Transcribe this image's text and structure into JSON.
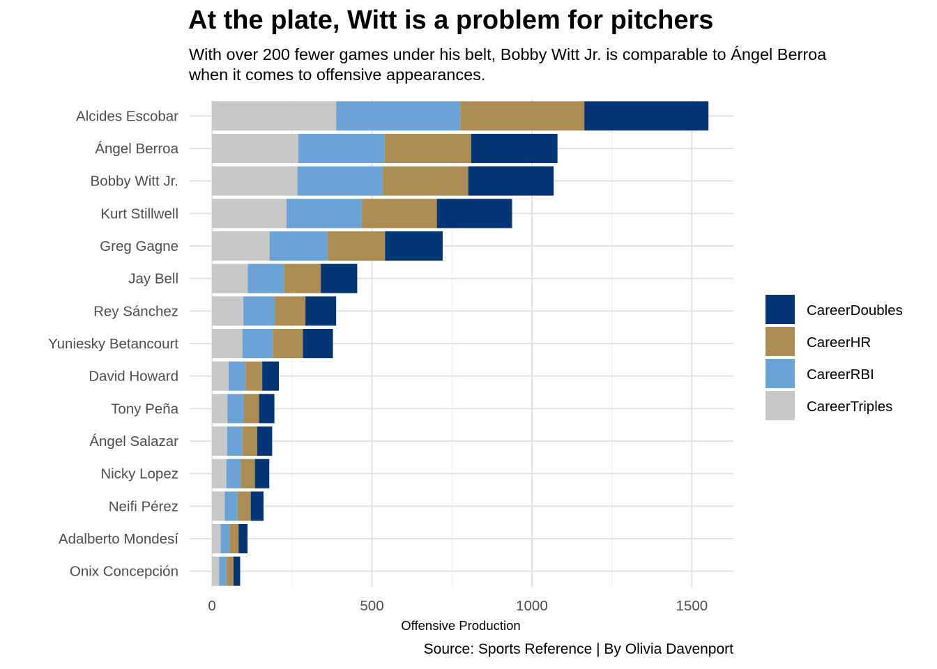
{
  "chart_data": {
    "type": "bar",
    "orientation": "horizontal",
    "stacked": true,
    "title": "At the plate, Witt is a problem for pitchers",
    "subtitle": "With over 200 fewer games under his belt, Bobby Witt Jr. is comparable to Ángel Berroa when it comes to offensive appearances.",
    "caption": "Source: Sports Reference | By Olivia Davenport",
    "xlabel": "Offensive Production",
    "ylabel": "",
    "xlim": [
      -70,
      1630
    ],
    "xticks": [
      0,
      500,
      1000,
      1500
    ],
    "grid": true,
    "legend_position": "right",
    "categories": [
      "Alcides Escobar",
      "Ángel Berroa",
      "Bobby Witt Jr.",
      "Kurt Stillwell",
      "Greg Gagne",
      "Jay Bell",
      "Rey Sánchez",
      "Yuniesky Betancourt",
      "David Howard",
      "Tony Peña",
      "Ángel Salazar",
      "Nicky Lopez",
      "Neifi Pérez",
      "Adalberto Mondesí",
      "Onix Concepción"
    ],
    "series": [
      {
        "name": "CareerTriples",
        "color": "#c8c8c8",
        "values": [
          388,
          270,
          267,
          233,
          180,
          112,
          98,
          95,
          52,
          48,
          47,
          45,
          40,
          27,
          22
        ]
      },
      {
        "name": "CareerRBI",
        "color": "#6ba3d6",
        "values": [
          388,
          270,
          267,
          235,
          181,
          114,
          98,
          95,
          53,
          51,
          48,
          45,
          40,
          28,
          23
        ]
      },
      {
        "name": "CareerHR",
        "color": "#ac8c52",
        "values": [
          388,
          270,
          267,
          235,
          180,
          114,
          96,
          94,
          52,
          48,
          46,
          44,
          41,
          28,
          22
        ]
      },
      {
        "name": "CareerDoubles",
        "color": "#043574",
        "values": [
          388,
          270,
          267,
          235,
          180,
          114,
          96,
          94,
          52,
          48,
          47,
          45,
          40,
          28,
          21
        ]
      }
    ],
    "totals": [
      1552,
      1080,
      1068,
      938,
      721,
      454,
      388,
      378,
      209,
      195,
      188,
      179,
      161,
      111,
      88
    ]
  }
}
